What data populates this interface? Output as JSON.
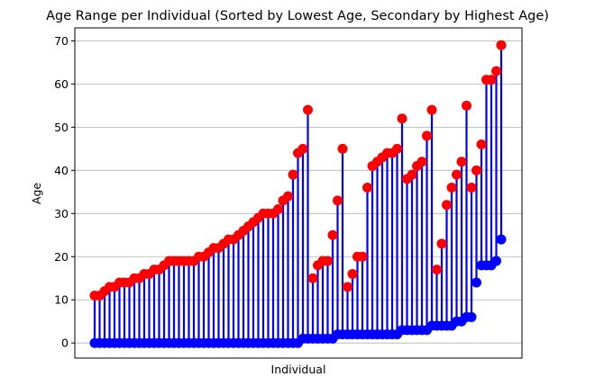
{
  "chart_data": {
    "type": "dumbbell",
    "title": "Age Range per Individual (Sorted by Lowest Age, Secondary by Highest Age)",
    "xlabel": "Individual",
    "ylabel": "Age",
    "ylim": [
      -3.5,
      73
    ],
    "yticks": [
      0,
      10,
      20,
      30,
      40,
      50,
      60,
      70
    ],
    "grid": "y",
    "colors": {
      "low": "#0000ff",
      "high": "#ff0000",
      "line": "#0000ff",
      "grid": "#b0b0b0"
    },
    "series": [
      {
        "name": "",
        "values": [
          0,
          0,
          0,
          0,
          0,
          0,
          0,
          0,
          0,
          0,
          0,
          0,
          0,
          0,
          0,
          0,
          0,
          0,
          0,
          0,
          0,
          0,
          0,
          0,
          0,
          0,
          0,
          0,
          0,
          0,
          0,
          0,
          0,
          0,
          0,
          0,
          0,
          0,
          0,
          0,
          0,
          0,
          1,
          1,
          1,
          1,
          1,
          1,
          1,
          2,
          2,
          2,
          2,
          2,
          2,
          2,
          2,
          2,
          2,
          2,
          2,
          2,
          3,
          3,
          3,
          3,
          3,
          3,
          4,
          4,
          4,
          4,
          4,
          5,
          5,
          6,
          6,
          14,
          18,
          18,
          18,
          19,
          24
        ]
      },
      {
        "name": "",
        "values": [
          11,
          11,
          12,
          13,
          13,
          14,
          14,
          14,
          15,
          15,
          16,
          16,
          17,
          17,
          18,
          19,
          19,
          19,
          19,
          19,
          19,
          20,
          20,
          21,
          22,
          22,
          23,
          24,
          24,
          25,
          26,
          27,
          28,
          29,
          30,
          30,
          30,
          31,
          33,
          34,
          39,
          44,
          45,
          54,
          15,
          18,
          19,
          19,
          25,
          33,
          45,
          13,
          16,
          20,
          20,
          36,
          41,
          42,
          43,
          44,
          44,
          45,
          52,
          38,
          39,
          41,
          42,
          48,
          54,
          17,
          23,
          32,
          36,
          39,
          42,
          55,
          36,
          40,
          46,
          61,
          61,
          63,
          69
        ]
      }
    ]
  }
}
